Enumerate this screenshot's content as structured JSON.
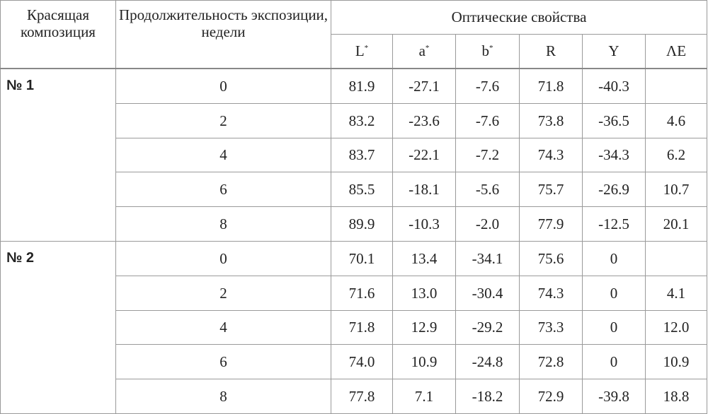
{
  "table": {
    "header": {
      "composition": "Красящая композиция",
      "duration": "Продолжительность экспозиции, недели",
      "optical": "Оптические свойства",
      "columns": [
        {
          "base": "L",
          "sup": "*"
        },
        {
          "base": "a",
          "sup": "*"
        },
        {
          "base": "b",
          "sup": "*"
        },
        {
          "base": "R"
        },
        {
          "base": "Y"
        },
        {
          "base": "ΛE"
        }
      ]
    },
    "groups": [
      {
        "name": "№ 1",
        "rows": [
          [
            "0",
            "81.9",
            "-27.1",
            "-7.6",
            "71.8",
            "-40.3",
            null
          ],
          [
            "2",
            "83.2",
            "-23.6",
            "-7.6",
            "73.8",
            "-36.5",
            "4.6"
          ],
          [
            "4",
            "83.7",
            "-22.1",
            "-7.2",
            "74.3",
            "-34.3",
            "6.2"
          ],
          [
            "6",
            "85.5",
            "-18.1",
            "-5.6",
            "75.7",
            "-26.9",
            "10.7"
          ],
          [
            "8",
            "89.9",
            "-10.3",
            "-2.0",
            "77.9",
            "-12.5",
            "20.1"
          ]
        ]
      },
      {
        "name": "№ 2",
        "rows": [
          [
            "0",
            "70.1",
            "13.4",
            "-34.1",
            "75.6",
            "0",
            null
          ],
          [
            "2",
            "71.6",
            "13.0",
            "-30.4",
            "74.3",
            "0",
            "4.1"
          ],
          [
            "4",
            "71.8",
            "12.9",
            "-29.2",
            "73.3",
            "0",
            "12.0"
          ],
          [
            "6",
            "74.0",
            "10.9",
            "-24.8",
            "72.8",
            "0",
            "10.9"
          ],
          [
            "8",
            "77.8",
            "7.1",
            "-18.2",
            "72.9",
            "-39.8",
            "18.8"
          ]
        ]
      }
    ]
  }
}
